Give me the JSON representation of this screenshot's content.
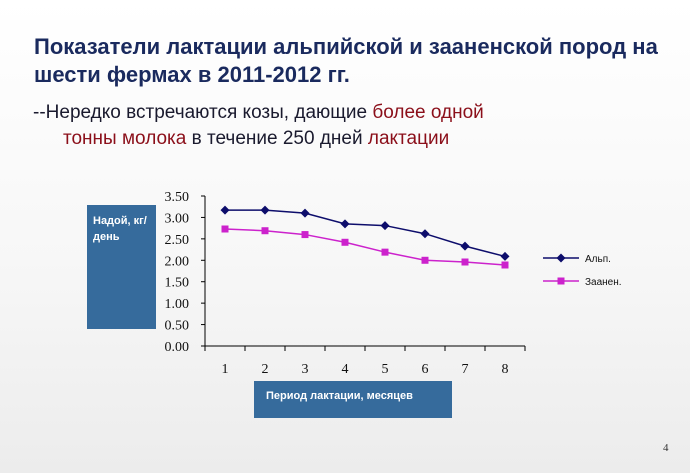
{
  "slide": {
    "title": "Показатели лактации альпийской и зааненской пород на шести фермах в 2011-2012 гг.",
    "subtitle": {
      "part1": "--Нередко встречаются козы, дающие ",
      "part2": "более одной",
      "part3": "тонны молока",
      "part4": " в течение 250 дней ",
      "part5": "лактации"
    },
    "page_number": "4",
    "highlight_color": "#8b0f1a"
  },
  "chart_data": {
    "type": "line",
    "ylabel": "Надой, кг/день",
    "xlabel": "Период лактации, месяцев",
    "categories": [
      "1",
      "2",
      "3",
      "4",
      "5",
      "6",
      "7",
      "8"
    ],
    "y_ticks": [
      "0.00",
      "0.50",
      "1.00",
      "1.50",
      "2.00",
      "2.50",
      "3.00",
      "3.50"
    ],
    "ylim": [
      0,
      3.5
    ],
    "grid": false,
    "legend_position": "right",
    "series": [
      {
        "name": "Альп.",
        "marker": "diamond",
        "color": "#0d0d6b",
        "values": [
          3.17,
          3.17,
          3.1,
          2.85,
          2.81,
          2.62,
          2.33,
          2.09
        ]
      },
      {
        "name": "Заанен.",
        "marker": "square",
        "color": "#cc22cc",
        "values": [
          2.73,
          2.69,
          2.6,
          2.42,
          2.19,
          2.0,
          1.96,
          1.89
        ]
      }
    ]
  }
}
